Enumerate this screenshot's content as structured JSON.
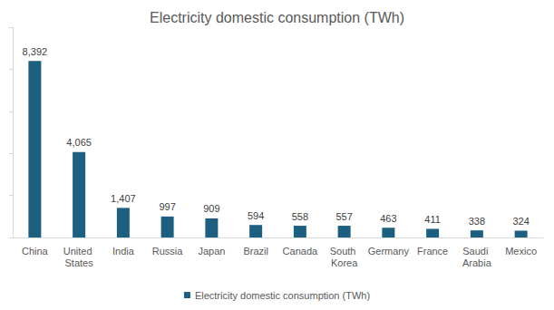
{
  "chart_data": {
    "type": "bar",
    "title": "Electricity domestic consumption (TWh)",
    "categories": [
      "China",
      "United States",
      "India",
      "Russia",
      "Japan",
      "Brazil",
      "Canada",
      "South Korea",
      "Germany",
      "France",
      "Saudi Arabia",
      "Mexico"
    ],
    "series": [
      {
        "name": "Electricity domestic consumption (TWh)",
        "color": "#1c5f80",
        "values": [
          8392,
          4065,
          1407,
          997,
          909,
          594,
          558,
          557,
          463,
          411,
          338,
          324
        ],
        "value_labels": [
          "8,392",
          "4,065",
          "1,407",
          "997",
          "909",
          "594",
          "558",
          "557",
          "463",
          "411",
          "338",
          "324"
        ]
      }
    ],
    "ylim": [
      0,
      10000
    ],
    "yticks": [
      0,
      2000,
      4000,
      6000,
      8000,
      10000
    ],
    "grid": false,
    "legend": "bottom",
    "data_labels": true,
    "tick_labels": "x"
  }
}
